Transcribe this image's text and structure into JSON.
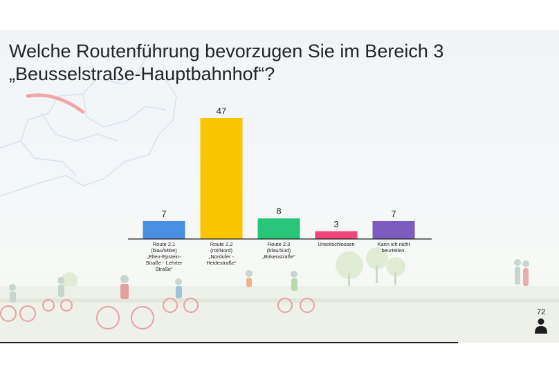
{
  "slide": {
    "title_line1": "Welche Routenführung bevorzugen Sie im Bereich 3",
    "title_line2": "„Beusselstraße-Hauptbahnhof“?",
    "page_number": "72"
  },
  "chart_data": {
    "type": "bar",
    "title": "Welche Routenführung bevorzugen Sie im Bereich 3 „Beusselstraße-Hauptbahnhof“?",
    "categories": [
      "Route 2.1 (blau/Mitte) „Ellen-Epstein-Straße - Lehrter Straße“",
      "Route 2.2 (rot/Nord) „Nordufer - Heidestraße“",
      "Route 2.3 (blau/Süd) „Birkenstraße“",
      "Unentschlossen",
      "Kann ich nicht beurteilen."
    ],
    "category_lines": [
      [
        "Route 2.1",
        "(blau/Mitte)",
        "„Ellen-Epstein-",
        "Straße - Lehrter",
        "Straße“"
      ],
      [
        "Route 2.2",
        "(rot/Nord)",
        "„Nordufer -",
        "Heidestraße“"
      ],
      [
        "Route 2.3",
        "(blau/Süd)",
        "„Birkenstraße“"
      ],
      [
        "Unentschlossen"
      ],
      [
        "Kann ich nicht",
        "beurteilen."
      ]
    ],
    "values": [
      7,
      47,
      8,
      3,
      7
    ],
    "colors": [
      "#4a90e2",
      "#fbc400",
      "#27c47a",
      "#f0457a",
      "#7c5cbe"
    ],
    "ylim": [
      0,
      47
    ],
    "data_labels": true,
    "grid": false,
    "legend": "none"
  }
}
